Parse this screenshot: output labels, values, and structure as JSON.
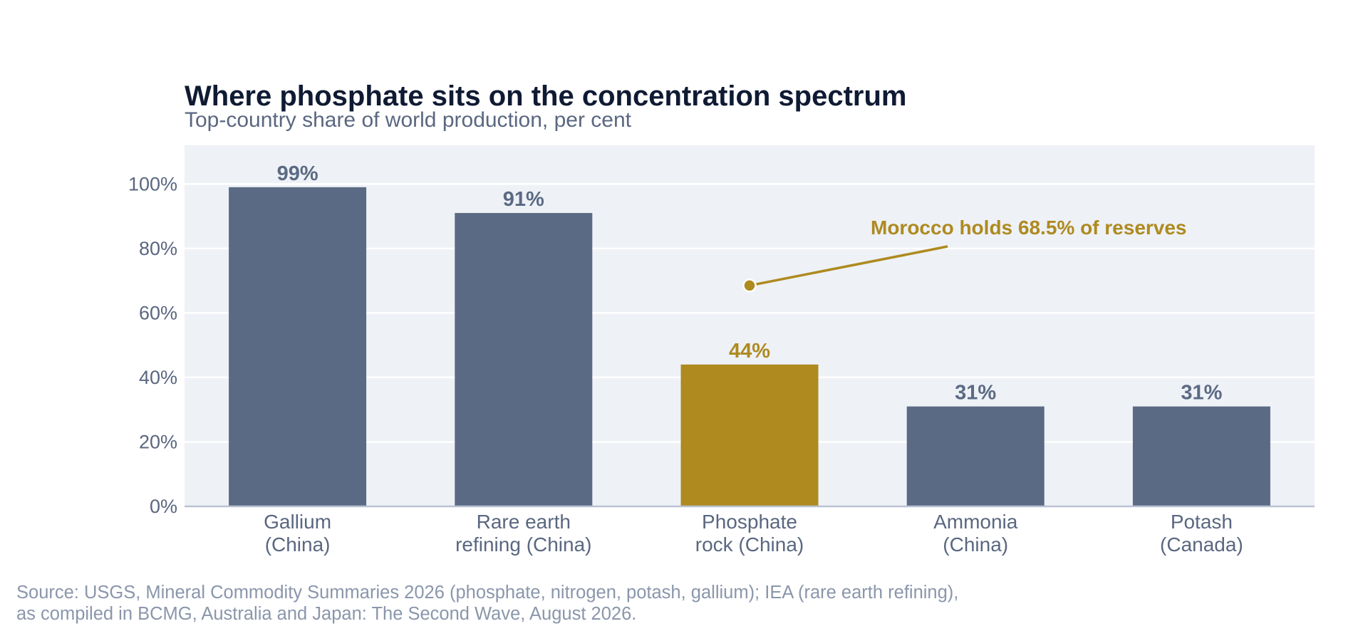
{
  "chart_data": {
    "type": "bar",
    "title": "Where phosphate sits on the concentration spectrum",
    "subtitle": "Top-country share of world production, per cent",
    "categories": [
      [
        "Gallium",
        "(China)"
      ],
      [
        "Rare earth",
        "refining (China)"
      ],
      [
        "Phosphate",
        "rock (China)"
      ],
      [
        "Ammonia",
        "(China)"
      ],
      [
        "Potash",
        "(Canada)"
      ]
    ],
    "values": [
      99,
      91,
      44,
      31,
      31
    ],
    "data_labels": [
      "99%",
      "91%",
      "44%",
      "31%",
      "31%"
    ],
    "highlight_index": 2,
    "ylim": [
      0,
      112
    ],
    "yticks": [
      0,
      20,
      40,
      60,
      80,
      100
    ],
    "ytick_labels": [
      "0%",
      "20%",
      "40%",
      "60%",
      "80%",
      "100%"
    ],
    "grid": true,
    "annotation": {
      "text": "Morocco holds 68.5% of reserves",
      "category_index": 2,
      "value": 68.5
    },
    "colors": {
      "bar": "#5b6a84",
      "highlight": "#ae8a1f",
      "plot_background": "#eef1f6",
      "gridline": "#ffffff",
      "baseline": "#b9c2d3"
    }
  },
  "footer": {
    "source_lines": [
      "Source: USGS, Mineral Commodity Summaries 2026 (phosphate, nitrogen, potash, gallium); IEA (rare earth refining),",
      "as compiled in BCMG, Australia and Japan: The Second Wave, August 2026."
    ]
  }
}
